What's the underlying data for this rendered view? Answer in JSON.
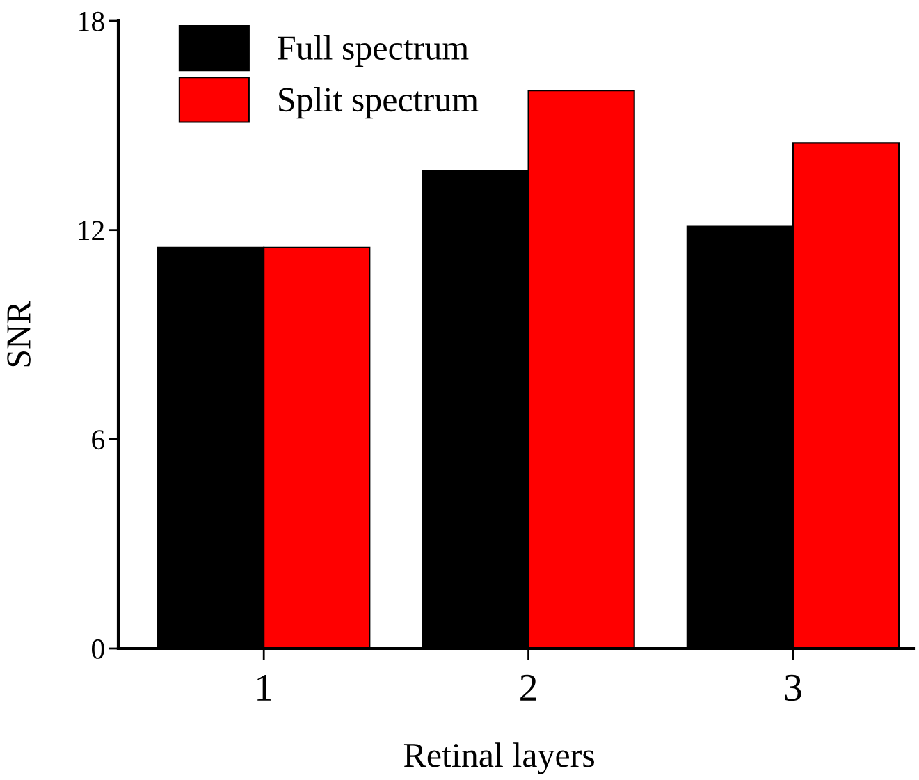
{
  "chart_data": {
    "type": "bar",
    "xlabel": "Retinal layers",
    "ylabel": "SNR",
    "categories": [
      "1",
      "2",
      "3"
    ],
    "series": [
      {
        "name": "Full spectrum",
        "color": "#000000",
        "values": [
          11.5,
          13.7,
          12.1
        ]
      },
      {
        "name": "Split spectrum",
        "color": "#ff0000",
        "values": [
          11.5,
          16.0,
          14.5
        ]
      }
    ],
    "ylim": [
      0,
      18
    ],
    "yticks": [
      0,
      6,
      12,
      18
    ],
    "grid": false,
    "legend": "top left"
  }
}
